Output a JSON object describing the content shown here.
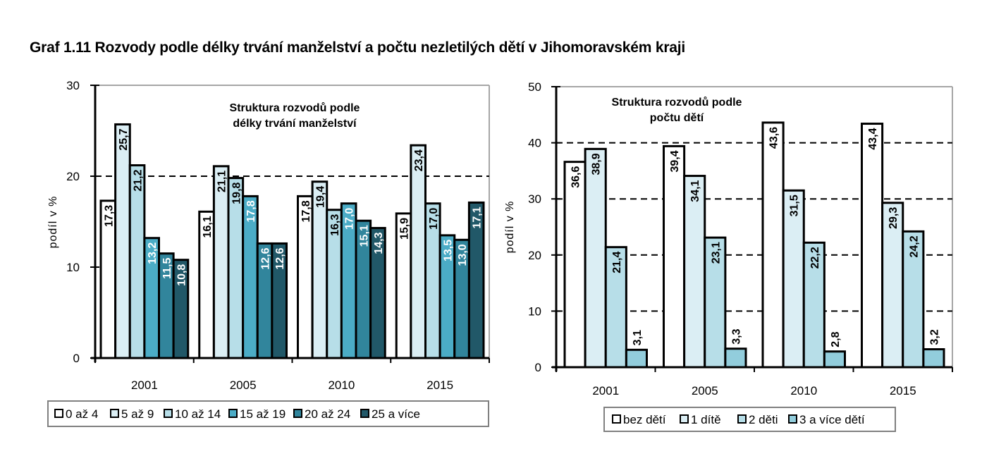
{
  "title": "Graf 1.11 Rozvody podle délky trvání manželství a počtu nezletilých dětí v Jihomoravském kraji",
  "chart_data": [
    {
      "type": "bar",
      "title": "Struktura rozvodů podle délky trvání manželství",
      "title_lines": [
        "Struktura rozvodů podle",
        "délky trvání manželství"
      ],
      "xlabel": "",
      "ylabel": "podíl v %",
      "ylim": [
        0,
        30
      ],
      "yticks": [
        0,
        10,
        20,
        30
      ],
      "gridlines": [
        20
      ],
      "grid": "dashed at 20",
      "legend_position": "bottom",
      "categories": [
        "2001",
        "2005",
        "2010",
        "2015"
      ],
      "series": [
        {
          "name": "0 až 4",
          "color": "#FFFFFF",
          "label_color": "#000000",
          "values": [
            17.3,
            16.1,
            17.8,
            15.9
          ],
          "labels": [
            "17,3",
            "16,1",
            "17,8",
            "15,9"
          ]
        },
        {
          "name": "5 až 9",
          "color": "#DBEEF4",
          "label_color": "#000000",
          "values": [
            25.7,
            21.1,
            19.4,
            23.4
          ],
          "labels": [
            "25,7",
            "21,1",
            "19,4",
            "23,4"
          ]
        },
        {
          "name": "10 až 14",
          "color": "#B7DEE8",
          "label_color": "#000000",
          "values": [
            21.2,
            19.8,
            16.3,
            17.0
          ],
          "labels": [
            "21,2",
            "19,8",
            "16,3",
            "17,0"
          ]
        },
        {
          "name": "15 až 19",
          "color": "#4BACC6",
          "label_color": "#FFFFFF",
          "values": [
            13.2,
            17.8,
            17.0,
            13.5
          ],
          "labels": [
            "13,2",
            "17,8",
            "17,0",
            "13,5"
          ]
        },
        {
          "name": "20 až 24",
          "color": "#31859C",
          "label_color": "#FFFFFF",
          "values": [
            11.5,
            12.6,
            15.1,
            13.0
          ],
          "labels": [
            "11,5",
            "12,6",
            "15,1",
            "13,0"
          ]
        },
        {
          "name": "25 a více",
          "color": "#215868",
          "label_color": "#FFFFFF",
          "values": [
            10.8,
            12.6,
            14.3,
            17.1
          ],
          "labels": [
            "10,8",
            "12,6",
            "14,3",
            "17,1"
          ]
        }
      ]
    },
    {
      "type": "bar",
      "title": "Struktura rozvodů podle počtu dětí",
      "title_lines": [
        "Struktura rozvodů podle",
        "počtu dětí"
      ],
      "xlabel": "",
      "ylabel": "podíl v %",
      "ylim": [
        0,
        50
      ],
      "yticks": [
        0,
        10,
        20,
        30,
        40,
        50
      ],
      "gridlines": [
        10,
        20,
        30,
        40
      ],
      "grid": "dashed at 10, 20, 30, 40",
      "legend_position": "bottom",
      "categories": [
        "2001",
        "2005",
        "2010",
        "2015"
      ],
      "series": [
        {
          "name": "bez dětí",
          "color": "#FFFFFF",
          "label_color": "#000000",
          "values": [
            36.6,
            39.4,
            43.6,
            43.4
          ],
          "labels": [
            "36,6",
            "39,4",
            "43,6",
            "43,4"
          ]
        },
        {
          "name": "1 dítě",
          "color": "#DBEEF4",
          "label_color": "#000000",
          "values": [
            38.9,
            34.1,
            31.5,
            29.3
          ],
          "labels": [
            "38,9",
            "34,1",
            "31,5",
            "29,3"
          ]
        },
        {
          "name": "2 děti",
          "color": "#B7DEE8",
          "label_color": "#000000",
          "values": [
            21.4,
            23.1,
            22.2,
            24.2
          ],
          "labels": [
            "21,4",
            "23,1",
            "22,2",
            "24,2"
          ]
        },
        {
          "name": "3 a více dětí",
          "color": "#92CDDC",
          "label_color": "#000000",
          "values": [
            3.1,
            3.3,
            2.8,
            3.2
          ],
          "labels": [
            "3,1",
            "3,3",
            "2,8",
            "3,2"
          ]
        }
      ]
    }
  ]
}
